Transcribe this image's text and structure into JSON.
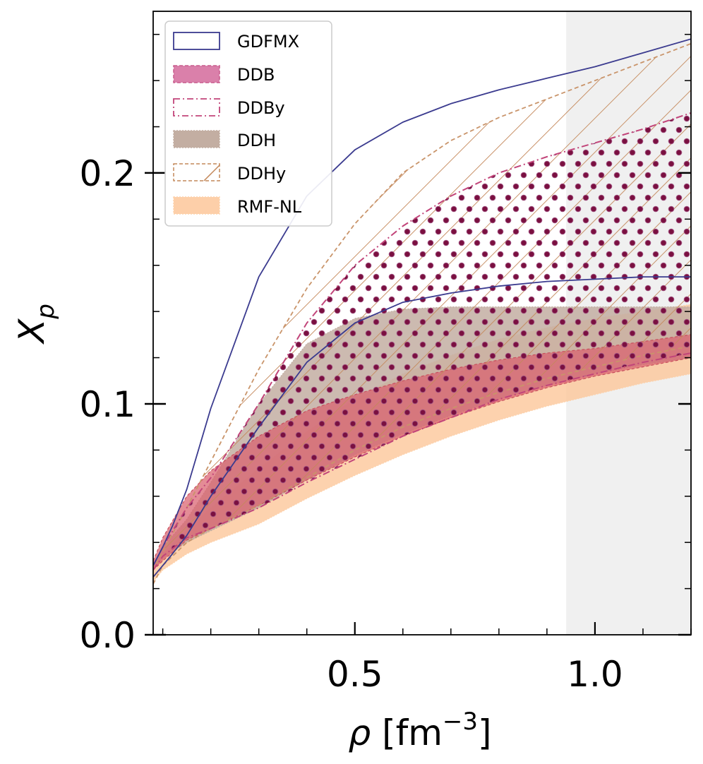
{
  "chart_data": {
    "type": "area",
    "xlabel": "ρ [fm⁻³]",
    "xlabel_parts": {
      "symbol": "ρ",
      "open": " [fm",
      "sup": "−3",
      "close": "]"
    },
    "ylabel": "Xp",
    "ylabel_parts": {
      "main": "X",
      "sub": "p"
    },
    "xlim": [
      0.08,
      1.2
    ],
    "ylim": [
      0.0,
      0.27
    ],
    "xticks": [
      {
        "value": 0.5,
        "label": "0.5"
      },
      {
        "value": 1.0,
        "label": "1.0"
      }
    ],
    "yticks": [
      {
        "value": 0.0,
        "label": "0.0"
      },
      {
        "value": 0.1,
        "label": "0.1"
      },
      {
        "value": 0.2,
        "label": "0.2"
      }
    ],
    "x_minor_step": 0.1,
    "y_minor_step": 0.02,
    "shaded_region": {
      "x": [
        0.94,
        1.2
      ],
      "color": "#f0f0f0"
    },
    "legend_position": "top-left",
    "series": [
      {
        "name": "GDFMX",
        "style": "outline",
        "color": "#3b3b8f",
        "x": [
          0.08,
          0.1,
          0.12,
          0.15,
          0.2,
          0.3,
          0.4,
          0.5,
          0.6,
          0.7,
          0.8,
          0.9,
          1.0,
          1.1,
          1.2
        ],
        "upper": [
          0.03,
          0.038,
          0.047,
          0.063,
          0.098,
          0.155,
          0.19,
          0.21,
          0.222,
          0.23,
          0.236,
          0.241,
          0.246,
          0.252,
          0.258
        ],
        "lower": [
          0.025,
          0.03,
          0.035,
          0.043,
          0.06,
          0.09,
          0.118,
          0.135,
          0.144,
          0.148,
          0.151,
          0.153,
          0.154,
          0.155,
          0.155
        ]
      },
      {
        "name": "DDB",
        "style": "filled",
        "color": "#d36a9b",
        "x": [
          0.08,
          0.1,
          0.15,
          0.2,
          0.3,
          0.4,
          0.5,
          0.6,
          0.7,
          0.8,
          0.9,
          1.0,
          1.1,
          1.2
        ],
        "upper": [
          0.032,
          0.042,
          0.06,
          0.071,
          0.086,
          0.097,
          0.104,
          0.11,
          0.115,
          0.119,
          0.122,
          0.124,
          0.127,
          0.13
        ],
        "lower": [
          0.028,
          0.032,
          0.041,
          0.046,
          0.056,
          0.067,
          0.077,
          0.086,
          0.094,
          0.101,
          0.107,
          0.112,
          0.116,
          0.12
        ]
      },
      {
        "name": "DDBy",
        "style": "dotted",
        "color": "#c2457a",
        "dot_color": "#7a1040",
        "x": [
          0.08,
          0.1,
          0.15,
          0.2,
          0.3,
          0.4,
          0.5,
          0.6,
          0.7,
          0.8,
          0.9,
          1.0,
          1.1,
          1.2
        ],
        "upper": [
          0.03,
          0.038,
          0.055,
          0.068,
          0.1,
          0.135,
          0.16,
          0.177,
          0.19,
          0.2,
          0.207,
          0.213,
          0.219,
          0.226
        ],
        "lower": [
          0.028,
          0.034,
          0.042,
          0.046,
          0.055,
          0.066,
          0.076,
          0.086,
          0.094,
          0.102,
          0.108,
          0.113,
          0.118,
          0.122
        ]
      },
      {
        "name": "DDH",
        "style": "filled",
        "color": "#c3aea2",
        "x": [
          0.08,
          0.1,
          0.15,
          0.2,
          0.3,
          0.4,
          0.5,
          0.6,
          0.7,
          0.8,
          0.9,
          1.0,
          1.1,
          1.2
        ],
        "upper": [
          0.03,
          0.038,
          0.05,
          0.066,
          0.1,
          0.126,
          0.137,
          0.141,
          0.142,
          0.142,
          0.142,
          0.142,
          0.142,
          0.142
        ],
        "lower": [
          0.028,
          0.033,
          0.04,
          0.045,
          0.055,
          0.067,
          0.078,
          0.087,
          0.095,
          0.102,
          0.108,
          0.113,
          0.117,
          0.12
        ]
      },
      {
        "name": "DDHy",
        "style": "hatched",
        "color": "#c4885a",
        "x": [
          0.08,
          0.1,
          0.15,
          0.2,
          0.3,
          0.4,
          0.5,
          0.6,
          0.7,
          0.8,
          0.9,
          1.0,
          1.1,
          1.2
        ],
        "upper": [
          0.028,
          0.036,
          0.055,
          0.075,
          0.115,
          0.15,
          0.178,
          0.2,
          0.214,
          0.224,
          0.232,
          0.24,
          0.248,
          0.256
        ],
        "lower": [
          0.022,
          0.03,
          0.04,
          0.046,
          0.056,
          0.068,
          0.08,
          0.09,
          0.098,
          0.105,
          0.111,
          0.116,
          0.121,
          0.125
        ]
      },
      {
        "name": "RMF-NL",
        "style": "filled",
        "color": "#fdc79a",
        "x": [
          0.08,
          0.1,
          0.15,
          0.2,
          0.3,
          0.4,
          0.5,
          0.6,
          0.7,
          0.8,
          0.9,
          1.0,
          1.1,
          1.2
        ],
        "upper": [
          0.028,
          0.035,
          0.045,
          0.055,
          0.072,
          0.088,
          0.102,
          0.113,
          0.121,
          0.128,
          0.133,
          0.137,
          0.14,
          0.143
        ],
        "lower": [
          0.023,
          0.028,
          0.035,
          0.04,
          0.048,
          0.059,
          0.069,
          0.078,
          0.086,
          0.093,
          0.099,
          0.104,
          0.109,
          0.113
        ]
      }
    ]
  }
}
